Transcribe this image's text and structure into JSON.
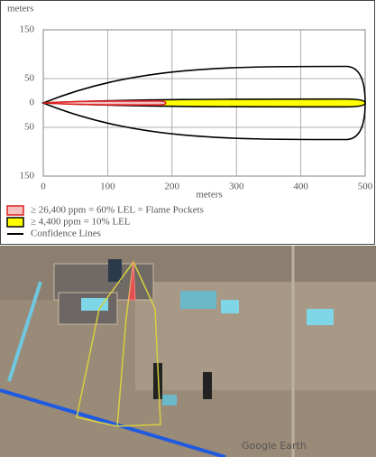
{
  "chart_data": {
    "type": "threat-zone",
    "y_label": "meters",
    "x_label": "meters",
    "xlim": [
      0,
      500
    ],
    "xticks": [
      0,
      100,
      200,
      300,
      400,
      500
    ],
    "ylim": [
      -150,
      150
    ],
    "yticks": [
      {
        "value": -150,
        "label": "150"
      },
      {
        "value": -50,
        "label": "50"
      },
      0,
      50,
      150
    ],
    "grid": true,
    "zones": [
      {
        "name": "Confidence Lines",
        "color": "#000000",
        "fill": "none",
        "length": 500,
        "half_width": 75
      },
      {
        "name": "≥ 4,400 ppm = 10% LEL",
        "color": "#000000",
        "fill": "#ffff00",
        "length": 500,
        "half_width": 8
      },
      {
        "name": "≥ 26,400 ppm = 60% LEL = Flame Pockets",
        "color": "#dd2222",
        "fill": "#f4c0c0",
        "length": 190,
        "half_width": 4
      }
    ]
  },
  "image": {
    "watermark": "Google Earth"
  }
}
